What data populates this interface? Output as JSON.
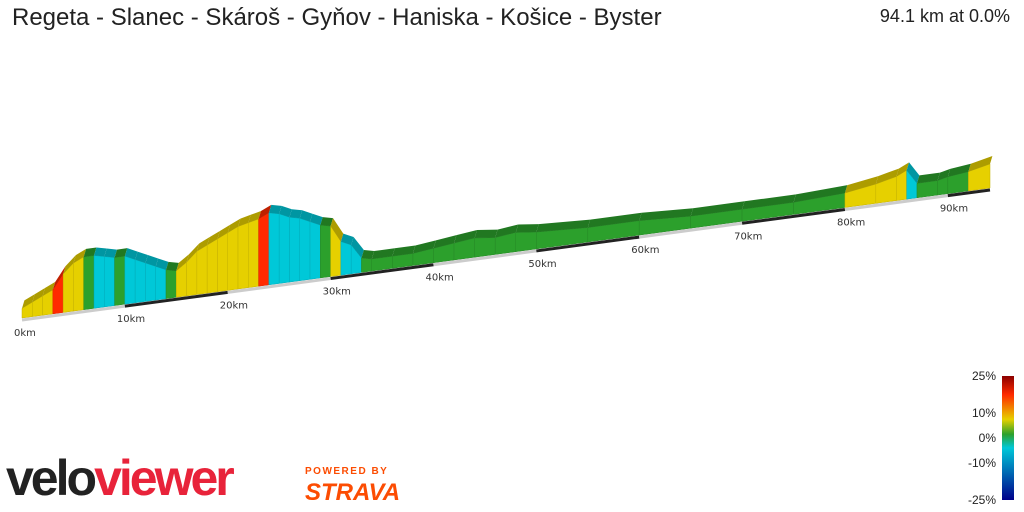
{
  "header": {
    "title": "Regeta - Slanec - Skároš - Gyňov - Haniska - Košice - Byster",
    "summary": "94.1 km at 0.0%"
  },
  "chart_data": {
    "type": "area",
    "subtype": "3d-elevation-profile",
    "distance_km": 94.1,
    "x_ticks": [
      "0km",
      "10km",
      "20km",
      "30km",
      "40km",
      "50km",
      "60km",
      "70km",
      "80km",
      "90km"
    ],
    "profile": [
      {
        "km": 0,
        "h": 4,
        "grade": -2
      },
      {
        "km": 1,
        "h": 6,
        "grade": 3
      },
      {
        "km": 2,
        "h": 8,
        "grade": 4
      },
      {
        "km": 3,
        "h": 10,
        "grade": 5
      },
      {
        "km": 4,
        "h": 16,
        "grade": 6
      },
      {
        "km": 5,
        "h": 20,
        "grade": 5
      },
      {
        "km": 6,
        "h": 22,
        "grade": 3
      },
      {
        "km": 7,
        "h": 22,
        "grade": 1
      },
      {
        "km": 8,
        "h": 21,
        "grade": -2
      },
      {
        "km": 9,
        "h": 20,
        "grade": -4
      },
      {
        "km": 10,
        "h": 20,
        "grade": -1
      },
      {
        "km": 11,
        "h": 18,
        "grade": -3
      },
      {
        "km": 12,
        "h": 16,
        "grade": -4
      },
      {
        "km": 13,
        "h": 14,
        "grade": -5
      },
      {
        "km": 14,
        "h": 12,
        "grade": -4
      },
      {
        "km": 15,
        "h": 11,
        "grade": 2
      },
      {
        "km": 16,
        "h": 14,
        "grade": 4
      },
      {
        "km": 17,
        "h": 18,
        "grade": 5
      },
      {
        "km": 18,
        "h": 20,
        "grade": 5
      },
      {
        "km": 19,
        "h": 22,
        "grade": 3
      },
      {
        "km": 20,
        "h": 24,
        "grade": 4
      },
      {
        "km": 21,
        "h": 26,
        "grade": 5
      },
      {
        "km": 22,
        "h": 27,
        "grade": 3
      },
      {
        "km": 23,
        "h": 28,
        "grade": 4
      },
      {
        "km": 24,
        "h": 30,
        "grade": 6
      },
      {
        "km": 25,
        "h": 29,
        "grade": -3
      },
      {
        "km": 26,
        "h": 27,
        "grade": -5
      },
      {
        "km": 27,
        "h": 26,
        "grade": -2
      },
      {
        "km": 28,
        "h": 24,
        "grade": -4
      },
      {
        "km": 29,
        "h": 22,
        "grade": -3
      },
      {
        "km": 30,
        "h": 21,
        "grade": -1
      },
      {
        "km": 31,
        "h": 14,
        "grade": 4
      },
      {
        "km": 32,
        "h": 12,
        "grade": -4
      },
      {
        "km": 33,
        "h": 6,
        "grade": -3
      },
      {
        "km": 34,
        "h": 5,
        "grade": 0
      },
      {
        "km": 36,
        "h": 5,
        "grade": 0
      },
      {
        "km": 38,
        "h": 5,
        "grade": 1
      },
      {
        "km": 40,
        "h": 6,
        "grade": 1
      },
      {
        "km": 42,
        "h": 7,
        "grade": 2
      },
      {
        "km": 44,
        "h": 8,
        "grade": 2
      },
      {
        "km": 46,
        "h": 7,
        "grade": 1
      },
      {
        "km": 48,
        "h": 8,
        "grade": 2
      },
      {
        "km": 50,
        "h": 7,
        "grade": 1
      },
      {
        "km": 55,
        "h": 6,
        "grade": 1
      },
      {
        "km": 60,
        "h": 6,
        "grade": 1
      },
      {
        "km": 65,
        "h": 5,
        "grade": 0
      },
      {
        "km": 70,
        "h": 5,
        "grade": 1
      },
      {
        "km": 75,
        "h": 5,
        "grade": 1
      },
      {
        "km": 80,
        "h": 6,
        "grade": 1
      },
      {
        "km": 83,
        "h": 8,
        "grade": 3
      },
      {
        "km": 85,
        "h": 10,
        "grade": 4
      },
      {
        "km": 86,
        "h": 12,
        "grade": 5
      },
      {
        "km": 87,
        "h": 6,
        "grade": -3
      },
      {
        "km": 89,
        "h": 6,
        "grade": -1
      },
      {
        "km": 90,
        "h": 7,
        "grade": 1
      },
      {
        "km": 92,
        "h": 8,
        "grade": 2
      },
      {
        "km": 94.1,
        "h": 10,
        "grade": 3
      }
    ],
    "legend": {
      "labels": [
        "25%",
        "10%",
        "0%",
        "-10%",
        "-25%"
      ],
      "stops": [
        25,
        10,
        0,
        -10,
        -25
      ]
    }
  },
  "branding": {
    "logo_velo": "velo",
    "logo_viewer": "viewer",
    "powered_by": "POWERED BY",
    "strava": "STRAVA"
  },
  "colors": {
    "steep_up": "#8b0000",
    "up": "#ff2a00",
    "gentle_up": "#e6d000",
    "flat": "#2ca02c",
    "down": "#00c8d8",
    "steep_down": "#00008b"
  }
}
